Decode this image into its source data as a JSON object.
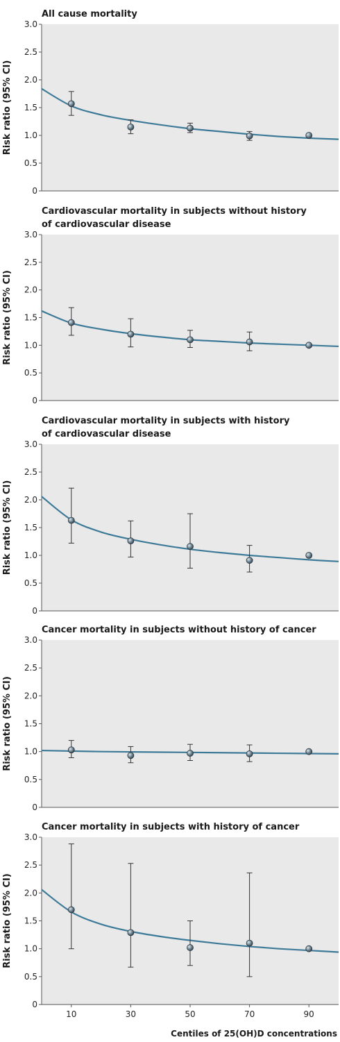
{
  "chart_data": [
    {
      "type": "scatter",
      "title": [
        "All cause mortality"
      ],
      "ylabel": "Risk ratio (95% CI)",
      "xlabel": "",
      "xlim": [
        0,
        100
      ],
      "ylim": [
        0,
        3
      ],
      "x": [
        10,
        30,
        50,
        70,
        90
      ],
      "y": [
        1.57,
        1.15,
        1.13,
        0.99,
        1.0
      ],
      "ci_low": [
        1.36,
        1.03,
        1.05,
        0.91,
        null
      ],
      "ci_high": [
        1.79,
        1.28,
        1.22,
        1.07,
        null
      ],
      "curve": [
        [
          0,
          1.84
        ],
        [
          10,
          1.53
        ],
        [
          20,
          1.37
        ],
        [
          30,
          1.27
        ],
        [
          40,
          1.19
        ],
        [
          50,
          1.12
        ],
        [
          60,
          1.07
        ],
        [
          70,
          1.02
        ],
        [
          80,
          0.98
        ],
        [
          90,
          0.95
        ],
        [
          100,
          0.93
        ]
      ],
      "y_ticks": [
        "0",
        "0.5",
        "1.0",
        "1.5",
        "2.0",
        "2.5",
        "3.0"
      ],
      "x_ticks": [],
      "grid": false,
      "colors": {
        "curve": "#3d7a98",
        "background": "#e9e9e9",
        "marker": "#4a5a66"
      }
    },
    {
      "type": "scatter",
      "title": [
        "Cardiovascular mortality in subjects without history",
        "of cardiovascular disease"
      ],
      "ylabel": "Risk ratio (95% CI)",
      "xlabel": "",
      "xlim": [
        0,
        100
      ],
      "ylim": [
        0,
        3
      ],
      "x": [
        10,
        30,
        50,
        70,
        90
      ],
      "y": [
        1.41,
        1.2,
        1.1,
        1.06,
        1.0
      ],
      "ci_low": [
        1.18,
        0.97,
        0.96,
        0.9,
        null
      ],
      "ci_high": [
        1.68,
        1.48,
        1.27,
        1.24,
        null
      ],
      "curve": [
        [
          0,
          1.62
        ],
        [
          10,
          1.4
        ],
        [
          20,
          1.29
        ],
        [
          30,
          1.21
        ],
        [
          40,
          1.15
        ],
        [
          50,
          1.1
        ],
        [
          60,
          1.07
        ],
        [
          70,
          1.04
        ],
        [
          80,
          1.02
        ],
        [
          90,
          1.0
        ],
        [
          100,
          0.98
        ]
      ],
      "y_ticks": [
        "0",
        "0.5",
        "1.0",
        "1.5",
        "2.0",
        "2.5",
        "3.0"
      ],
      "x_ticks": [],
      "grid": false,
      "colors": {
        "curve": "#3d7a98",
        "background": "#e9e9e9",
        "marker": "#4a5a66"
      }
    },
    {
      "type": "scatter",
      "title": [
        "Cardiovascular mortality in subjects with history",
        "of cardiovascular disease"
      ],
      "ylabel": "Risk ratio (95% CI)",
      "xlabel": "",
      "xlim": [
        0,
        100
      ],
      "ylim": [
        0,
        3
      ],
      "x": [
        10,
        30,
        50,
        70,
        90
      ],
      "y": [
        1.63,
        1.26,
        1.16,
        0.91,
        1.0
      ],
      "ci_low": [
        1.22,
        0.97,
        0.77,
        0.7,
        null
      ],
      "ci_high": [
        2.21,
        1.62,
        1.75,
        1.18,
        null
      ],
      "curve": [
        [
          0,
          2.06
        ],
        [
          10,
          1.64
        ],
        [
          20,
          1.42
        ],
        [
          30,
          1.29
        ],
        [
          40,
          1.19
        ],
        [
          50,
          1.11
        ],
        [
          60,
          1.05
        ],
        [
          70,
          1.0
        ],
        [
          80,
          0.96
        ],
        [
          90,
          0.92
        ],
        [
          100,
          0.89
        ]
      ],
      "y_ticks": [
        "0",
        "0.5",
        "1.0",
        "1.5",
        "2.0",
        "2.5",
        "3.0"
      ],
      "x_ticks": [],
      "grid": false,
      "colors": {
        "curve": "#3d7a98",
        "background": "#e9e9e9",
        "marker": "#4a5a66"
      }
    },
    {
      "type": "scatter",
      "title": [
        "Cancer mortality in subjects without history of cancer"
      ],
      "ylabel": "Risk ratio (95% CI)",
      "xlabel": "",
      "xlim": [
        0,
        100
      ],
      "ylim": [
        0,
        3
      ],
      "x": [
        10,
        30,
        50,
        70,
        90
      ],
      "y": [
        1.03,
        0.93,
        0.97,
        0.96,
        1.0
      ],
      "ci_low": [
        0.89,
        0.8,
        0.84,
        0.82,
        null
      ],
      "ci_high": [
        1.2,
        1.09,
        1.13,
        1.12,
        null
      ],
      "curve": [
        [
          0,
          1.02
        ],
        [
          20,
          1.0
        ],
        [
          40,
          0.99
        ],
        [
          60,
          0.98
        ],
        [
          80,
          0.97
        ],
        [
          100,
          0.96
        ]
      ],
      "y_ticks": [
        "0",
        "0.5",
        "1.0",
        "1.5",
        "2.0",
        "2.5",
        "3.0"
      ],
      "x_ticks": [],
      "grid": false,
      "colors": {
        "curve": "#3d7a98",
        "background": "#e9e9e9",
        "marker": "#4a5a66"
      }
    },
    {
      "type": "scatter",
      "title": [
        "Cancer mortality in subjects with history of cancer"
      ],
      "ylabel": "Risk ratio (95% CI)",
      "xlabel": "Centiles of 25(OH)D concentrations",
      "xlim": [
        0,
        100
      ],
      "ylim": [
        0,
        3
      ],
      "x": [
        10,
        30,
        50,
        70,
        90
      ],
      "y": [
        1.7,
        1.29,
        1.02,
        1.1,
        1.0
      ],
      "ci_low": [
        1.0,
        0.67,
        0.7,
        0.5,
        null
      ],
      "ci_high": [
        2.88,
        2.53,
        1.5,
        2.36,
        null
      ],
      "curve": [
        [
          0,
          2.06
        ],
        [
          10,
          1.66
        ],
        [
          20,
          1.44
        ],
        [
          30,
          1.31
        ],
        [
          40,
          1.22
        ],
        [
          50,
          1.15
        ],
        [
          60,
          1.09
        ],
        [
          70,
          1.04
        ],
        [
          80,
          1.0
        ],
        [
          90,
          0.97
        ],
        [
          100,
          0.94
        ]
      ],
      "y_ticks": [
        "0",
        "0.5",
        "1.0",
        "1.5",
        "2.0",
        "2.5",
        "3.0"
      ],
      "x_ticks": [
        "10",
        "30",
        "50",
        "70",
        "90"
      ],
      "grid": false,
      "colors": {
        "curve": "#3d7a98",
        "background": "#e9e9e9",
        "marker": "#4a5a66"
      }
    }
  ]
}
